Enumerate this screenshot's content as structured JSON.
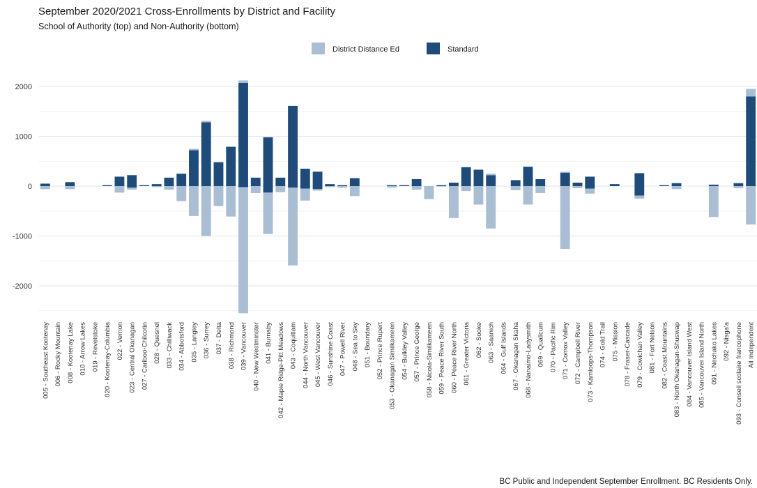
{
  "chart_data": {
    "type": "bar",
    "title": "September 2020/2021 Cross-Enrollments by District and Facility",
    "subtitle": "School of Authority (top) and Non-Authority (bottom)",
    "caption": "BC Public and Independent September Enrollment.  BC Residents Only.",
    "legend": {
      "position": "top",
      "entries": [
        "District Distance Ed",
        "Standard"
      ]
    },
    "colors": {
      "District Distance Ed": "#a9bdd3",
      "Standard": "#1e4b79",
      "grid": "#e3e3e3"
    },
    "ylim": [
      -2600,
      2200
    ],
    "yticks": [
      -2000,
      -1000,
      0,
      1000,
      2000
    ],
    "grid": true,
    "categories": [
      "005 - Southeast Kootenay",
      "006 - Rocky Mountain",
      "008 - Kootenay Lake",
      "010 - Arrow Lakes",
      "019 - Revelstoke",
      "020 - Kootenay-Columbia",
      "022 - Vernon",
      "023 - Central Okanagan",
      "027 - Cariboo-Chilcotin",
      "028 - Quesnel",
      "033 - Chilliwack",
      "034 - Abbotsford",
      "035 - Langley",
      "036 - Surrey",
      "037 - Delta",
      "038 - Richmond",
      "039 - Vancouver",
      "040 - New Westminster",
      "041 - Burnaby",
      "042 - Maple Ridge-Pitt Meadows",
      "043 - Coquitlam",
      "044 - North Vancouver",
      "045 - West Vancouver",
      "046 - Sunshine Coast",
      "047 - Powell River",
      "048 - Sea to Sky",
      "051 - Boundary",
      "052 - Prince Rupert",
      "053 - Okanagan Similkameen",
      "054 - Bulkley Valley",
      "057 - Prince George",
      "058 - Nicola-Similkameen",
      "059 - Peace River South",
      "060 - Peace River North",
      "061 - Greater Victoria",
      "062 - Sooke",
      "063 - Saanich",
      "064 - Gulf Islands",
      "067 - Okanagan Skaha",
      "068 - Nanaimo-Ladysmith",
      "069 - Qualicum",
      "070 - Pacific Rim",
      "071 - Comox Valley",
      "072 - Campbell River",
      "073 - Kamloops-Thompson",
      "074 - Gold Trail",
      "075 - Mission",
      "078 - Fraser-Cascade",
      "079 - Cowichan Valley",
      "081 - Fort Nelson",
      "082 - Coast Mountains",
      "083 - North Okanagan-Shuswap",
      "084 - Vancouver Island West",
      "085 - Vancouver Island North",
      "091 - Nechako Lakes",
      "092 - Nisga'a",
      "093 - Conseil scolaire francophone",
      "All Independent"
    ],
    "series": [
      {
        "name": "Standard",
        "top": [
          50,
          0,
          80,
          0,
          0,
          20,
          190,
          220,
          20,
          40,
          170,
          250,
          720,
          1280,
          480,
          790,
          2070,
          170,
          980,
          170,
          1610,
          350,
          290,
          40,
          20,
          160,
          0,
          0,
          20,
          20,
          140,
          0,
          20,
          70,
          380,
          330,
          220,
          0,
          120,
          390,
          140,
          0,
          270,
          70,
          190,
          0,
          40,
          0,
          260,
          0,
          20,
          60,
          0,
          0,
          30,
          0,
          60,
          1800
        ],
        "bottom": [
          0,
          0,
          0,
          0,
          0,
          0,
          0,
          -30,
          0,
          0,
          0,
          0,
          0,
          0,
          0,
          0,
          -20,
          0,
          -130,
          0,
          -30,
          -50,
          -60,
          0,
          0,
          0,
          0,
          0,
          0,
          0,
          0,
          0,
          0,
          0,
          0,
          0,
          0,
          0,
          0,
          0,
          0,
          0,
          0,
          0,
          -50,
          0,
          0,
          0,
          -190,
          0,
          0,
          0,
          0,
          0,
          0,
          0,
          0,
          0
        ]
      },
      {
        "name": "District Distance Ed",
        "top": [
          0,
          0,
          0,
          0,
          0,
          0,
          0,
          0,
          0,
          0,
          0,
          0,
          30,
          30,
          0,
          0,
          50,
          0,
          0,
          0,
          0,
          0,
          0,
          0,
          0,
          0,
          0,
          0,
          0,
          0,
          0,
          0,
          0,
          0,
          0,
          0,
          30,
          0,
          0,
          0,
          0,
          0,
          20,
          0,
          0,
          0,
          0,
          0,
          0,
          0,
          0,
          0,
          0,
          0,
          0,
          0,
          0,
          150
        ],
        "bottom": [
          -60,
          0,
          -60,
          0,
          0,
          0,
          -130,
          -40,
          0,
          -20,
          -70,
          -300,
          -600,
          -1000,
          -400,
          -610,
          -2530,
          -140,
          -830,
          -120,
          -1560,
          -240,
          -30,
          -20,
          -30,
          -200,
          0,
          0,
          -30,
          0,
          -70,
          -260,
          -10,
          -640,
          -100,
          -370,
          -850,
          0,
          -80,
          -370,
          -140,
          0,
          -1260,
          -40,
          -100,
          0,
          0,
          0,
          -60,
          0,
          0,
          -60,
          0,
          0,
          -620,
          0,
          -40,
          -770
        ]
      }
    ]
  }
}
